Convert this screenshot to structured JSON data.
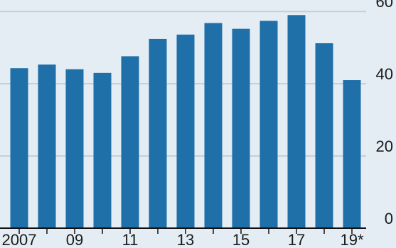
{
  "chart_data": {
    "type": "bar",
    "categories": [
      "2007",
      "2008",
      "2009",
      "2010",
      "2011",
      "2012",
      "2013",
      "2014",
      "2015",
      "2016",
      "2017",
      "2018",
      "2019*"
    ],
    "x_tick_labels": [
      {
        "category": "2007",
        "label": "2007"
      },
      {
        "category": "2009",
        "label": "09"
      },
      {
        "category": "2011",
        "label": "11"
      },
      {
        "category": "2013",
        "label": "13"
      },
      {
        "category": "2015",
        "label": "15"
      },
      {
        "category": "2017",
        "label": "17"
      },
      {
        "category": "2019*",
        "label": "19*"
      }
    ],
    "values": [
      44.3,
      45.3,
      44.0,
      43.0,
      47.6,
      52.4,
      53.6,
      56.8,
      55.2,
      57.4,
      59.0,
      51.2,
      41.0
    ],
    "y_ticks": [
      0,
      20,
      40,
      60
    ],
    "y_tick_labels": [
      "0",
      "20",
      "40",
      "60"
    ],
    "ylim": [
      0,
      62
    ],
    "y_axis_side": "right",
    "grid": true,
    "title": "",
    "xlabel": "",
    "ylabel": "",
    "colors": {
      "background": "#e4edf4",
      "bar": "#1f6fa8",
      "grid": "#c3ced8",
      "axis": "#111111",
      "text": "#1a1a1a"
    }
  }
}
